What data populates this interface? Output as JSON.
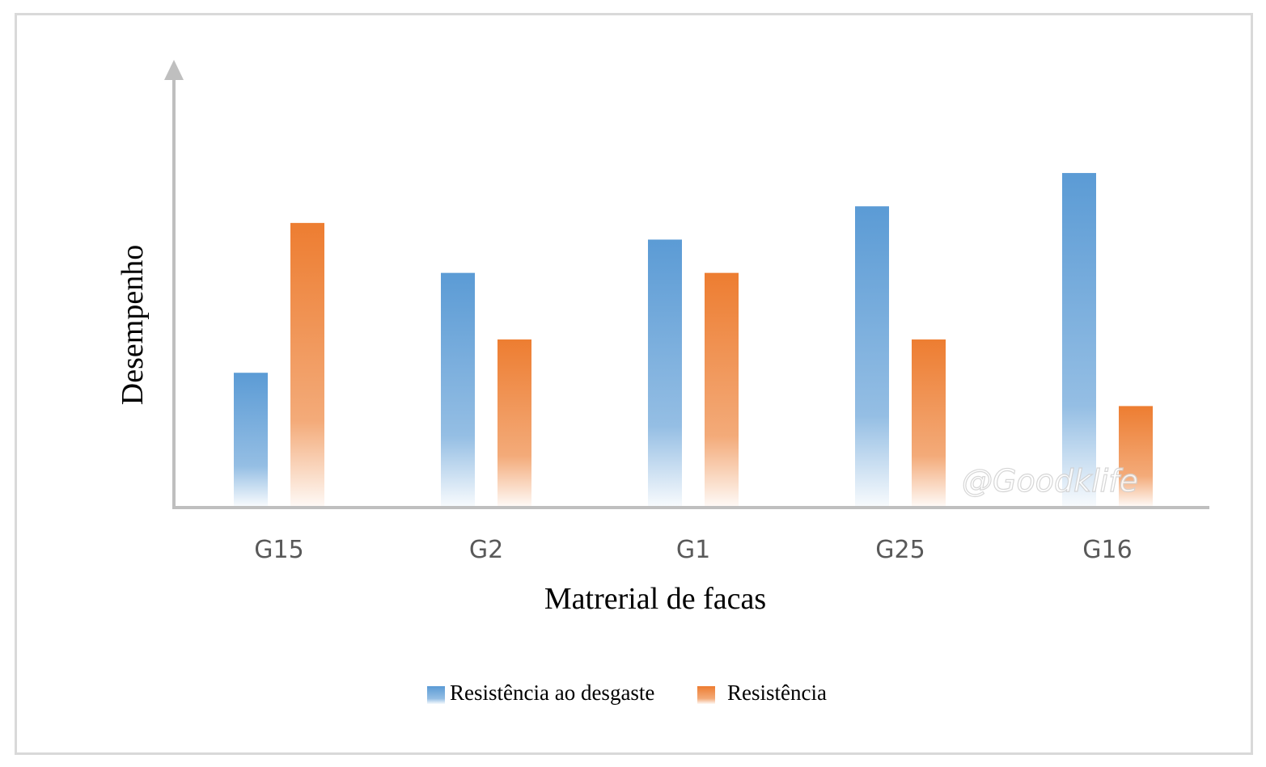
{
  "colors": {
    "series1": "#5b9bd5",
    "series2": "#ed7d31",
    "axis": "#bfbfbf",
    "border": "#d9d9d9"
  },
  "watermark": "@Goodklife",
  "chart_data": {
    "type": "bar",
    "xlabel": "Matrerial de facas",
    "ylabel": "Desempenho",
    "categories": [
      "G15",
      "G2",
      "G1",
      "G25",
      "G16"
    ],
    "series": [
      {
        "name": "Resistência ao desgaste",
        "values": [
          4,
          7,
          8,
          9,
          10
        ]
      },
      {
        "name": "Resistência",
        "values": [
          8.5,
          5,
          7,
          5,
          3
        ]
      }
    ],
    "ylim": [
      0,
      13.4
    ],
    "grid": false,
    "y_tick_labels": false,
    "legend": "bottom",
    "bar_style": "gradient fading toward baseline"
  }
}
